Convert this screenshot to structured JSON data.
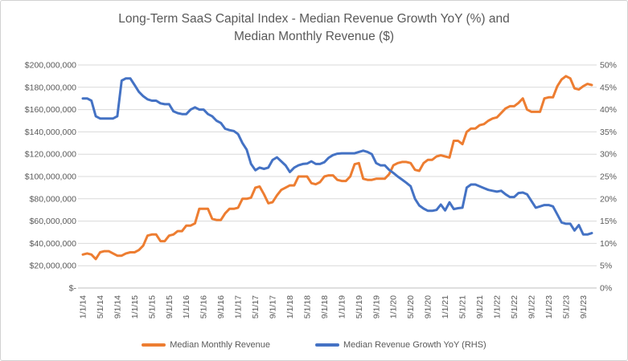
{
  "chart_data": {
    "type": "line",
    "title": "Long-Term SaaS Capital Index - Median Revenue Growth YoY (%) and Median Monthly Revenue ($)",
    "title_line1": "Long-Term SaaS Capital Index - Median Revenue Growth YoY (%) and",
    "title_line2": "Median Monthly Revenue ($)",
    "grid": "horizontal",
    "legend_position": "bottom",
    "x_axis": {
      "frequency": "monthly",
      "first_point": "1/1/14",
      "last_point": "11/1/23",
      "points_per_tick": 4,
      "tick_labels": [
        "1/1/14",
        "5/1/14",
        "9/1/14",
        "1/1/15",
        "5/1/15",
        "9/1/15",
        "1/1/16",
        "5/1/16",
        "9/1/16",
        "1/1/17",
        "5/1/17",
        "9/1/17",
        "1/1/18",
        "5/1/18",
        "9/1/18",
        "1/1/19",
        "5/1/19",
        "9/1/19",
        "1/1/20",
        "5/1/20",
        "9/1/20",
        "1/1/21",
        "5/1/21",
        "9/1/21",
        "1/1/22",
        "5/1/22",
        "9/1/22",
        "1/1/23",
        "5/1/23",
        "9/1/23"
      ]
    },
    "left_axis": {
      "min_value_millions": 0,
      "max_value_millions": 200,
      "step_millions": 20,
      "tick_labels": [
        "$200,000,000",
        "$180,000,000",
        "$160,000,000",
        "$140,000,000",
        "$120,000,000",
        "$100,000,000",
        "$80,000,000",
        "$60,000,000",
        "$40,000,000",
        "$20,000,000",
        "$-"
      ]
    },
    "right_axis": {
      "min_value_percent": 0,
      "max_value_percent": 50,
      "step_percent": 5,
      "tick_labels": [
        "50%",
        "45%",
        "40%",
        "35%",
        "30%",
        "25%",
        "20%",
        "15%",
        "10%",
        "5%",
        "0%"
      ]
    },
    "series": [
      {
        "name": "Median Monthly Revenue",
        "axis": "left",
        "unit": "USD millions",
        "color": "#ED7D31",
        "values": [
          30,
          31,
          30,
          26,
          32,
          33,
          33,
          31,
          29,
          29,
          31,
          32,
          32,
          34,
          38,
          47,
          48,
          48,
          42,
          42,
          47,
          48,
          51,
          51,
          56,
          56,
          58,
          71,
          71,
          71,
          62,
          61,
          61,
          67,
          71,
          71,
          72,
          80,
          80,
          81,
          90,
          91,
          84,
          76,
          77,
          83,
          88,
          90,
          92,
          92,
          100,
          100,
          100,
          94,
          93,
          95,
          100,
          101,
          101,
          97,
          96,
          96,
          100,
          111,
          112,
          98,
          97,
          97,
          98,
          98,
          98,
          102,
          110,
          112,
          113,
          113,
          112,
          106,
          105,
          112,
          115,
          115,
          118,
          119,
          118,
          117,
          132,
          132,
          129,
          140,
          143,
          143,
          146,
          147,
          150,
          152,
          153,
          157,
          161,
          163,
          163,
          166,
          170,
          160,
          158,
          158,
          158,
          170,
          171,
          171,
          181,
          187,
          190,
          188,
          179,
          178,
          181,
          183,
          182
        ]
      },
      {
        "name": "Median Revenue Growth YoY (RHS)",
        "axis": "right",
        "unit": "percent",
        "color": "#4472C4",
        "values": [
          42.5,
          42.5,
          42,
          38.5,
          38,
          38,
          38,
          38,
          38.5,
          46.5,
          47,
          47,
          45.5,
          44,
          43,
          42.3,
          42,
          42,
          41.4,
          41.2,
          41.2,
          39.6,
          39.2,
          39,
          39,
          40,
          40.5,
          40,
          40,
          39,
          38.5,
          37.5,
          37,
          35.7,
          35.4,
          35.2,
          34.5,
          32.5,
          31,
          27.8,
          26.4,
          27,
          26.7,
          27,
          28.7,
          29.3,
          28.4,
          27.5,
          26,
          27,
          27.5,
          27.8,
          27.9,
          28.4,
          27.8,
          27.8,
          28.2,
          29.2,
          29.8,
          30.1,
          30.2,
          30.2,
          30.2,
          30.2,
          30.5,
          30.8,
          30.5,
          30,
          28,
          27.5,
          27.5,
          26.5,
          25.8,
          25,
          24.3,
          23.6,
          22.8,
          20,
          18.5,
          17.8,
          17.3,
          17.3,
          17.5,
          18.7,
          17.4,
          19.2,
          17.7,
          17.9,
          18,
          22.5,
          23.2,
          23.2,
          22.8,
          22.4,
          22,
          21.8,
          21.6,
          21.8,
          21,
          20.4,
          20.4,
          21.3,
          21.4,
          21,
          19.5,
          18,
          18.3,
          18.6,
          18.6,
          18.3,
          16.5,
          14.7,
          14.4,
          14.4,
          12.9,
          14.1,
          12,
          12,
          12.3
        ]
      }
    ]
  },
  "colors": {
    "revenue_line": "#ED7D31",
    "growth_line": "#4472C4",
    "gridline": "#D9D9D9",
    "axis_line": "#BFBFBF",
    "text": "#595959",
    "background": "#FFFFFF",
    "border": "#D2D2D2"
  }
}
